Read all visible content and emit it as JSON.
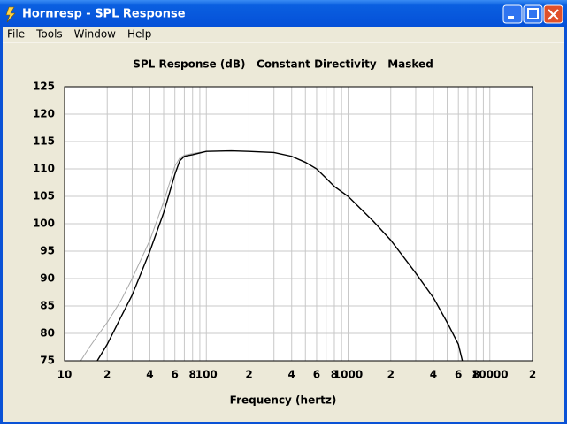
{
  "window": {
    "title": "Hornresp - SPL Response",
    "menu": [
      "File",
      "Tools",
      "Window",
      "Help"
    ]
  },
  "chart_data": {
    "type": "line",
    "title": "SPL Response (dB)   Constant Directivity   Masked",
    "x_label": "Frequency (hertz)",
    "xscale": "log",
    "xlim": [
      10,
      20000
    ],
    "xticks": [
      10,
      {
        "value": 20,
        "label": "2"
      },
      {
        "value": 40,
        "label": "4"
      },
      {
        "value": 60,
        "label": "6"
      },
      {
        "value": 80,
        "label": "8"
      },
      100,
      {
        "value": 200,
        "label": "2"
      },
      {
        "value": 400,
        "label": "4"
      },
      {
        "value": 600,
        "label": "6"
      },
      {
        "value": 800,
        "label": "8"
      },
      1000,
      {
        "value": 2000,
        "label": "2"
      },
      {
        "value": 4000,
        "label": "4"
      },
      {
        "value": 6000,
        "label": "6"
      },
      {
        "value": 8000,
        "label": "8"
      },
      10000,
      {
        "value": 20000,
        "label": "2"
      }
    ],
    "xminor_ticks": [
      30,
      50,
      70,
      90,
      300,
      500,
      700,
      900,
      3000,
      5000,
      7000,
      9000
    ],
    "ylim": [
      75,
      125
    ],
    "yticks": [
      75,
      80,
      85,
      90,
      95,
      100,
      105,
      110,
      115,
      120,
      125
    ],
    "grid": true,
    "x": [
      13,
      15,
      17,
      20,
      25,
      30,
      40,
      50,
      60,
      65,
      70,
      80,
      100,
      150,
      200,
      300,
      400,
      500,
      600,
      700,
      800,
      1000,
      1500,
      2000,
      3000,
      4000,
      5000,
      6000,
      6400
    ],
    "series": [
      {
        "color": "#a8a8a8",
        "values": [
          75,
          77.5,
          79.5,
          82,
          86,
          90,
          97,
          104,
          110.5,
          112,
          112.5,
          112.8,
          113.2,
          null,
          null,
          null,
          null,
          null,
          null,
          null,
          null,
          null,
          null,
          null,
          null,
          null,
          null,
          null,
          null
        ]
      },
      {
        "color": "#000000",
        "values": [
          null,
          null,
          75,
          78,
          83,
          87,
          95,
          102,
          109,
          111.5,
          112.3,
          112.6,
          113.2,
          113.3,
          113.2,
          113,
          112.3,
          111.2,
          110,
          108.3,
          106.8,
          105,
          100.5,
          97,
          91,
          86.5,
          82,
          78,
          75
        ]
      }
    ]
  }
}
